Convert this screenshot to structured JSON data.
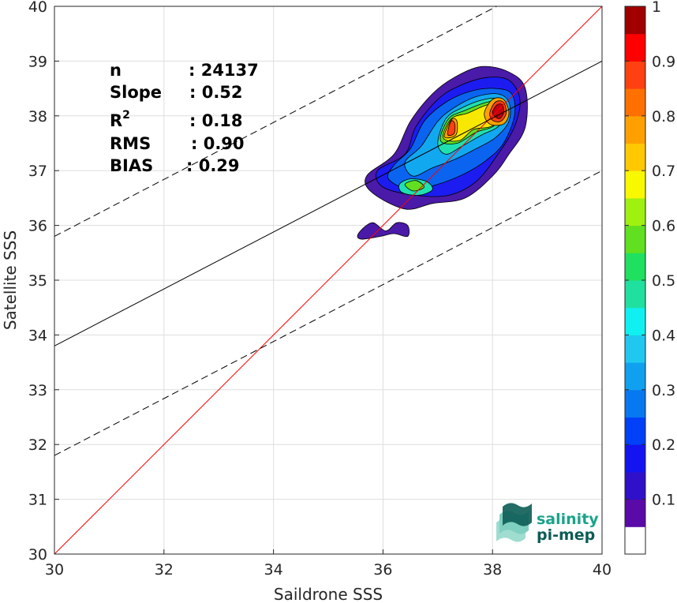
{
  "chart_data": {
    "type": "heatmap",
    "title": "",
    "xlabel": "Saildrone SSS",
    "ylabel": "Satellite SSS",
    "xlim": [
      30,
      40
    ],
    "ylim": [
      30,
      40
    ],
    "xticks": [
      "30",
      "32",
      "34",
      "36",
      "38",
      "40"
    ],
    "yticks": [
      "30",
      "31",
      "32",
      "33",
      "34",
      "35",
      "36",
      "37",
      "38",
      "39",
      "40"
    ],
    "grid": true,
    "stats": {
      "n": {
        "label": "n",
        "value": ": 24137"
      },
      "slope": {
        "label": "Slope",
        "value": ": 0.52"
      },
      "r2": {
        "label": "R",
        "sup": "2",
        "value": ": 0.18"
      },
      "rms": {
        "label": "RMS",
        "value": ": 0.90"
      },
      "bias": {
        "label": "BIAS",
        "value": ": 0.29"
      }
    },
    "lines": {
      "identity": {
        "x": [
          30,
          40
        ],
        "y": [
          30,
          40
        ],
        "color": "#ff0000"
      },
      "regression": {
        "x": [
          30,
          40
        ],
        "y": [
          33.8,
          39.0
        ],
        "color": "#000000"
      },
      "upper_bound": {
        "x": [
          30,
          40
        ],
        "y": [
          35.8,
          41.0
        ],
        "color": "#000000",
        "dash": true
      },
      "lower_bound": {
        "x": [
          30,
          40
        ],
        "y": [
          31.8,
          37.0
        ],
        "color": "#000000",
        "dash": true
      }
    },
    "contours": [
      {
        "level": 0.05,
        "color": "#4a1aa8",
        "points": [
          [
            36.2,
            37.3
          ],
          [
            36.5,
            37.9
          ],
          [
            36.9,
            38.4
          ],
          [
            37.3,
            38.7
          ],
          [
            37.8,
            38.9
          ],
          [
            38.3,
            38.8
          ],
          [
            38.6,
            38.5
          ],
          [
            38.6,
            37.8
          ],
          [
            38.3,
            37.3
          ],
          [
            38.0,
            36.9
          ],
          [
            37.5,
            36.5
          ],
          [
            36.9,
            36.4
          ],
          [
            36.4,
            36.3
          ],
          [
            35.8,
            36.6
          ],
          [
            35.7,
            36.9
          ]
        ]
      },
      {
        "level": 0.05,
        "color": "#4a1aa8",
        "points": [
          [
            35.55,
            35.85
          ],
          [
            35.8,
            36.05
          ],
          [
            36.05,
            35.9
          ],
          [
            36.25,
            36.05
          ],
          [
            36.45,
            36.0
          ],
          [
            36.45,
            35.8
          ],
          [
            36.2,
            35.85
          ],
          [
            35.95,
            35.8
          ],
          [
            35.6,
            35.75
          ]
        ]
      },
      {
        "level": 0.15,
        "color": "#1c1cf0",
        "points": [
          [
            36.4,
            37.3
          ],
          [
            36.6,
            37.8
          ],
          [
            37.0,
            38.3
          ],
          [
            37.4,
            38.55
          ],
          [
            37.9,
            38.7
          ],
          [
            38.3,
            38.65
          ],
          [
            38.5,
            38.3
          ],
          [
            38.4,
            37.8
          ],
          [
            38.1,
            37.3
          ],
          [
            37.7,
            36.8
          ],
          [
            37.2,
            36.55
          ],
          [
            36.6,
            36.55
          ],
          [
            36.0,
            36.7
          ],
          [
            35.9,
            37.0
          ]
        ]
      },
      {
        "level": 0.25,
        "color": "#0a64f0",
        "points": [
          [
            36.5,
            37.4
          ],
          [
            36.75,
            37.9
          ],
          [
            37.15,
            38.25
          ],
          [
            37.6,
            38.45
          ],
          [
            38.05,
            38.5
          ],
          [
            38.35,
            38.4
          ],
          [
            38.4,
            38.0
          ],
          [
            38.2,
            37.5
          ],
          [
            37.9,
            37.2
          ],
          [
            37.5,
            36.95
          ],
          [
            37.0,
            36.75
          ],
          [
            36.5,
            36.65
          ],
          [
            36.1,
            36.85
          ],
          [
            36.2,
            37.1
          ]
        ]
      },
      {
        "level": 0.35,
        "color": "#12a8f0",
        "points": [
          [
            36.7,
            37.45
          ],
          [
            37.0,
            37.9
          ],
          [
            37.3,
            38.15
          ],
          [
            37.7,
            38.35
          ],
          [
            38.1,
            38.4
          ],
          [
            38.3,
            38.25
          ],
          [
            38.3,
            37.9
          ],
          [
            38.05,
            37.6
          ],
          [
            37.7,
            37.4
          ],
          [
            37.3,
            37.2
          ],
          [
            36.9,
            37.05
          ],
          [
            36.55,
            36.9
          ],
          [
            36.4,
            37.15
          ]
        ]
      },
      {
        "level": 0.45,
        "color": "#20e0b0",
        "points": [
          [
            37.0,
            37.5
          ],
          [
            37.15,
            37.95
          ],
          [
            37.45,
            38.15
          ],
          [
            37.85,
            38.3
          ],
          [
            38.15,
            38.3
          ],
          [
            38.25,
            38.05
          ],
          [
            38.1,
            37.8
          ],
          [
            37.8,
            37.65
          ],
          [
            37.45,
            37.45
          ],
          [
            37.15,
            37.3
          ]
        ]
      },
      {
        "level": 0.45,
        "color": "#20e0b0",
        "points": [
          [
            36.3,
            36.75
          ],
          [
            36.5,
            36.85
          ],
          [
            36.8,
            36.8
          ],
          [
            36.9,
            36.65
          ],
          [
            36.65,
            36.55
          ],
          [
            36.35,
            36.6
          ]
        ]
      },
      {
        "level": 0.55,
        "color": "#60e020",
        "points": [
          [
            37.05,
            37.55
          ],
          [
            37.2,
            37.95
          ],
          [
            37.5,
            38.1
          ],
          [
            37.9,
            38.25
          ],
          [
            38.15,
            38.25
          ],
          [
            38.2,
            38.0
          ],
          [
            38.0,
            37.8
          ],
          [
            37.7,
            37.7
          ],
          [
            37.35,
            37.5
          ]
        ]
      },
      {
        "level": 0.55,
        "color": "#60e020",
        "points": [
          [
            36.4,
            36.75
          ],
          [
            36.6,
            36.82
          ],
          [
            36.75,
            36.7
          ],
          [
            36.55,
            36.63
          ]
        ]
      },
      {
        "level": 0.65,
        "color": "#f8e800",
        "points": [
          [
            37.1,
            37.6
          ],
          [
            37.25,
            37.95
          ],
          [
            37.55,
            38.05
          ],
          [
            37.9,
            38.2
          ],
          [
            38.15,
            38.2
          ],
          [
            38.2,
            37.95
          ],
          [
            37.95,
            37.8
          ],
          [
            37.65,
            37.75
          ],
          [
            37.4,
            37.55
          ]
        ]
      },
      {
        "level": 0.75,
        "color": "#ffa000",
        "points": [
          [
            37.12,
            37.62
          ],
          [
            37.25,
            37.93
          ],
          [
            37.35,
            37.9
          ],
          [
            37.33,
            37.65
          ]
        ]
      },
      {
        "level": 0.75,
        "color": "#ffa000",
        "points": [
          [
            37.85,
            38.05
          ],
          [
            38.0,
            38.3
          ],
          [
            38.2,
            38.3
          ],
          [
            38.3,
            38.05
          ],
          [
            38.2,
            37.85
          ],
          [
            37.95,
            37.85
          ]
        ]
      },
      {
        "level": 0.85,
        "color": "#ff4010",
        "points": [
          [
            37.18,
            37.66
          ],
          [
            37.24,
            37.9
          ],
          [
            37.31,
            37.86
          ],
          [
            37.3,
            37.68
          ]
        ]
      },
      {
        "level": 0.85,
        "color": "#ff4010",
        "points": [
          [
            37.95,
            38.05
          ],
          [
            38.05,
            38.25
          ],
          [
            38.2,
            38.25
          ],
          [
            38.25,
            38.05
          ],
          [
            38.15,
            37.9
          ],
          [
            38.0,
            37.92
          ]
        ]
      },
      {
        "level": 0.95,
        "color": "#c00010",
        "points": [
          [
            38.0,
            38.05
          ],
          [
            38.08,
            38.2
          ],
          [
            38.18,
            38.2
          ],
          [
            38.2,
            38.05
          ],
          [
            38.12,
            37.95
          ]
        ]
      }
    ],
    "colorbar": {
      "ticks": [
        "0.1",
        "0.2",
        "0.3",
        "0.4",
        "0.5",
        "0.6",
        "0.7",
        "0.8",
        "0.9",
        "1"
      ],
      "tick_values": [
        0.1,
        0.2,
        0.3,
        0.4,
        0.5,
        0.6,
        0.7,
        0.8,
        0.9,
        1.0
      ],
      "range": [
        0,
        1
      ],
      "bins": [
        {
          "from": 0.0,
          "to": 0.05,
          "color": "#ffffff"
        },
        {
          "from": 0.05,
          "to": 0.1,
          "color": "#5a0aa8"
        },
        {
          "from": 0.1,
          "to": 0.15,
          "color": "#3010c8"
        },
        {
          "from": 0.15,
          "to": 0.2,
          "color": "#1414f0"
        },
        {
          "from": 0.2,
          "to": 0.25,
          "color": "#0040f8"
        },
        {
          "from": 0.25,
          "to": 0.3,
          "color": "#0878f0"
        },
        {
          "from": 0.3,
          "to": 0.35,
          "color": "#10a0f0"
        },
        {
          "from": 0.35,
          "to": 0.4,
          "color": "#20c8f0"
        },
        {
          "from": 0.4,
          "to": 0.45,
          "color": "#10f0f0"
        },
        {
          "from": 0.45,
          "to": 0.5,
          "color": "#20e0a0"
        },
        {
          "from": 0.5,
          "to": 0.55,
          "color": "#20e060"
        },
        {
          "from": 0.55,
          "to": 0.6,
          "color": "#60e020"
        },
        {
          "from": 0.6,
          "to": 0.65,
          "color": "#a0f010"
        },
        {
          "from": 0.65,
          "to": 0.7,
          "color": "#f8f800"
        },
        {
          "from": 0.7,
          "to": 0.75,
          "color": "#ffc800"
        },
        {
          "from": 0.75,
          "to": 0.8,
          "color": "#ffa000"
        },
        {
          "from": 0.8,
          "to": 0.85,
          "color": "#ff7000"
        },
        {
          "from": 0.85,
          "to": 0.9,
          "color": "#ff4010"
        },
        {
          "from": 0.9,
          "to": 0.95,
          "color": "#ff0000"
        },
        {
          "from": 0.95,
          "to": 1.0,
          "color": "#a00000"
        }
      ]
    }
  },
  "logo": {
    "line1": "salinity",
    "line2": "pi-mep",
    "color_primary": "#1aa38a",
    "color_secondary": "#0c5c55"
  }
}
